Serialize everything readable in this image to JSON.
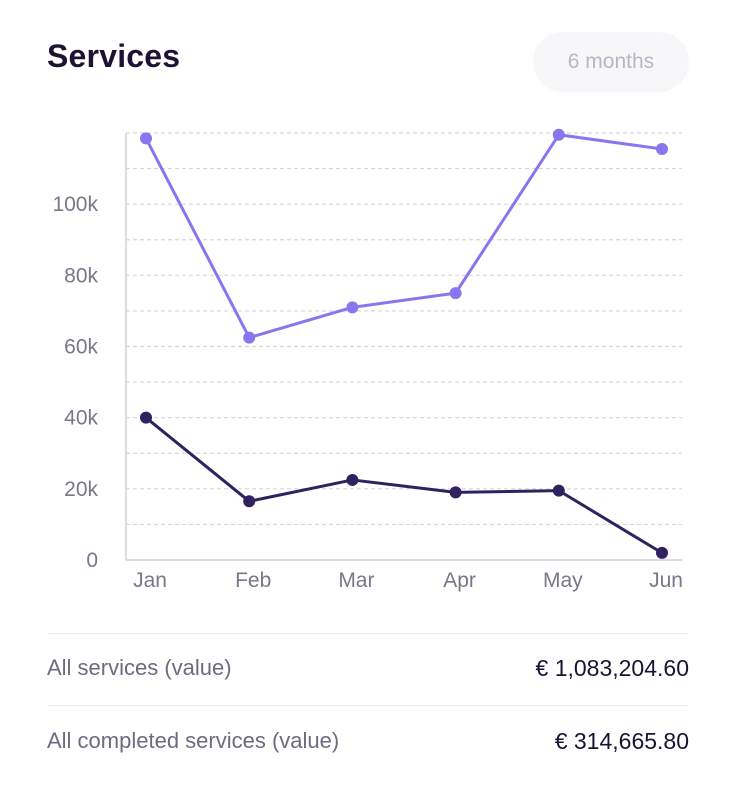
{
  "header": {
    "title": "Services",
    "period_button": "6 months"
  },
  "colors": {
    "series_all": "#8b74f0",
    "series_completed": "#2f225e",
    "grid": "#d6d6dc",
    "axis": "#d0d0d6"
  },
  "chart_data": {
    "type": "line",
    "categories": [
      "Jan",
      "Feb",
      "Mar",
      "Apr",
      "May",
      "Jun"
    ],
    "series": [
      {
        "key": "all",
        "values": [
          118500,
          62500,
          71000,
          75000,
          119500,
          115500
        ]
      },
      {
        "key": "completed",
        "values": [
          40000,
          16500,
          22500,
          19000,
          19500,
          2000
        ]
      }
    ],
    "yticks": [
      0,
      20000,
      40000,
      60000,
      80000,
      100000
    ],
    "ytick_labels": [
      "0",
      "20k",
      "40k",
      "60k",
      "80k",
      "100k"
    ],
    "ylim": [
      0,
      120000
    ],
    "grid_step": 10000,
    "grid": true,
    "title": "",
    "xlabel": "",
    "ylabel": ""
  },
  "summary": [
    {
      "label": "All services (value)",
      "value": "€ 1,083,204.60"
    },
    {
      "label": "All completed services (value)",
      "value": "€ 314,665.80"
    }
  ]
}
